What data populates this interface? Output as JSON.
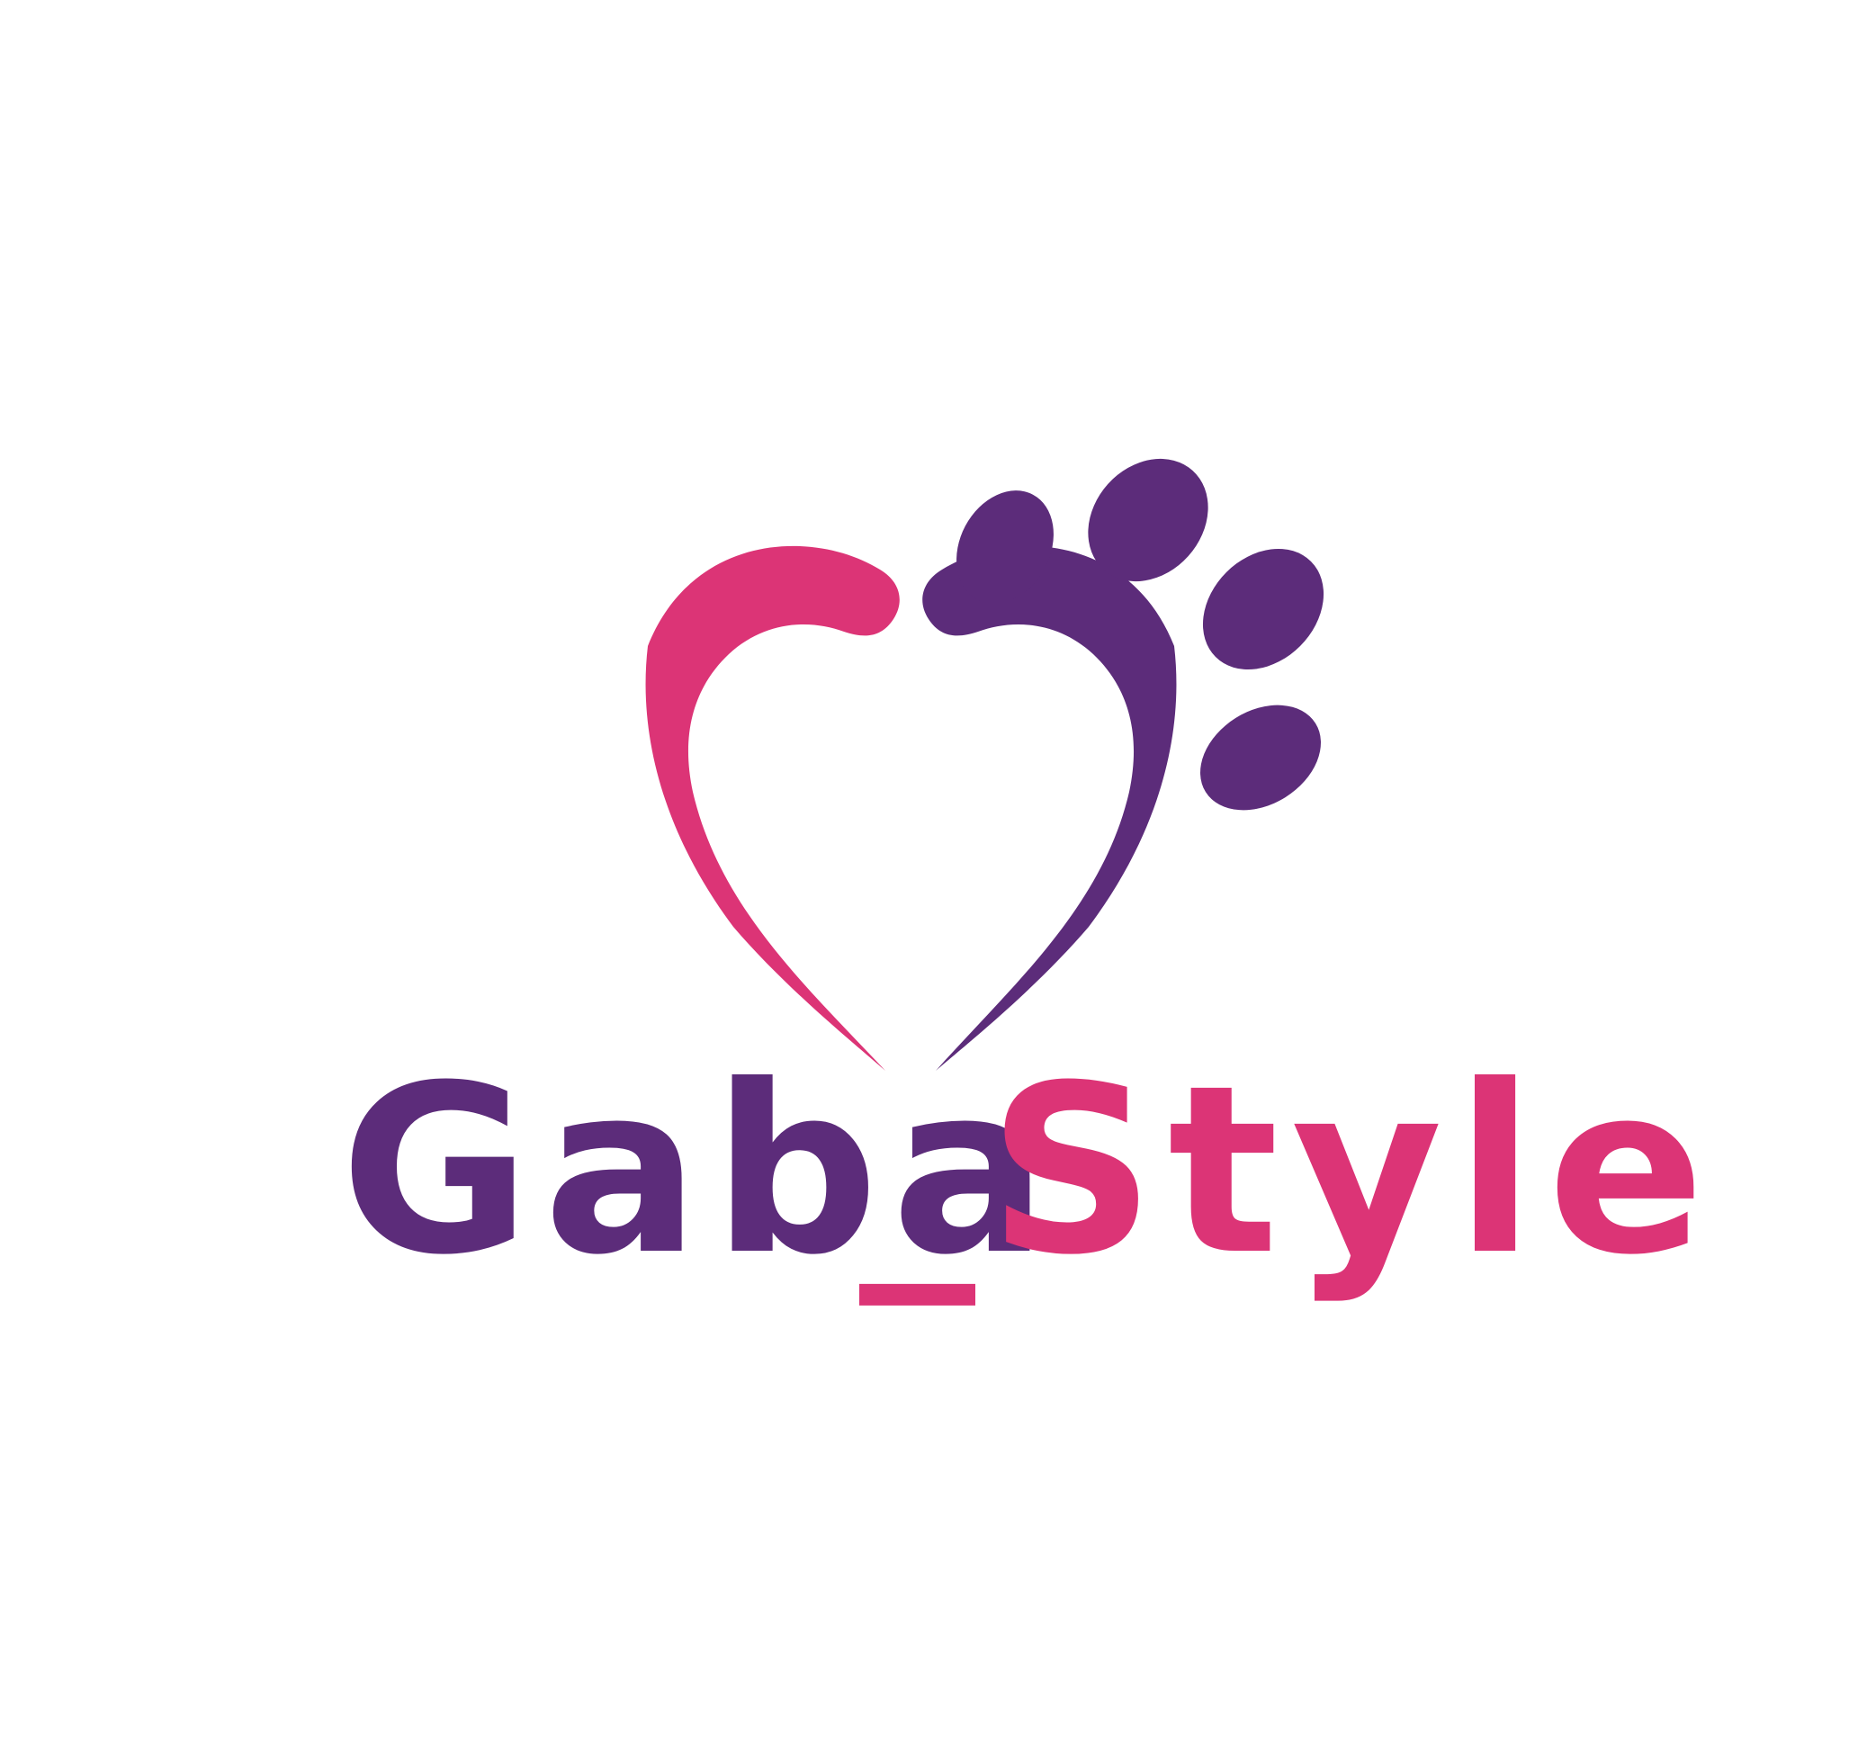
{
  "logo": {
    "name_part1": "Gaba",
    "name_part2": "_Style",
    "colors": {
      "background": "#ffffff",
      "pink": "#dc3476",
      "purple": "#5c2c7a"
    },
    "icon": "heart-paw-icon"
  }
}
